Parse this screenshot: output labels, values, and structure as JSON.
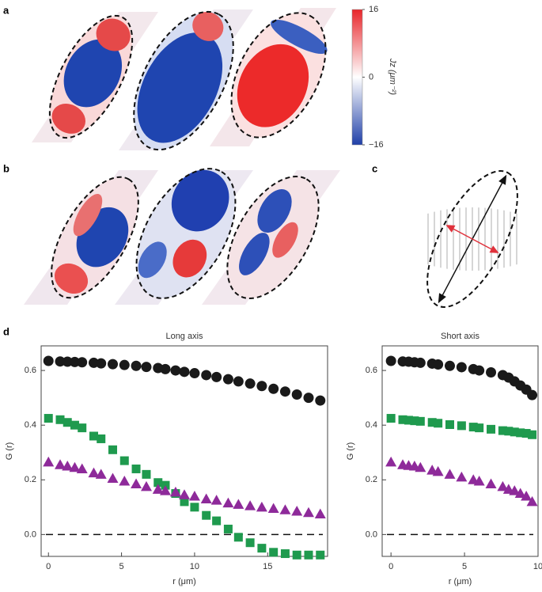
{
  "chart_data": [
    {
      "type": "heatmap",
      "panel": "a",
      "colorbar": {
        "lim": [
          -16,
          16
        ],
        "ticks": [
          16,
          0,
          {
            "value": -16,
            "label": "−16"
          }
        ],
        "label": "Jz (μm⁻²)"
      }
    },
    {
      "type": "heatmap",
      "panel": "b"
    },
    {
      "type": "diagram",
      "panel": "c"
    },
    {
      "type": "scatter",
      "panel": "d",
      "title": "Long axis",
      "title_color": "#222222",
      "xlabel": "r (μm)",
      "ylabel": "G (r)",
      "xlim": [
        -0.5,
        19.1
      ],
      "ylim": [
        -0.08,
        0.69
      ],
      "xticks": [
        0,
        5,
        10,
        15
      ],
      "yticks": [
        {
          "value": 0,
          "label": "0.0"
        },
        0.2,
        0.4,
        0.6
      ],
      "hline": 0,
      "x": [
        0,
        0.8,
        1.3,
        1.8,
        2.3,
        3.1,
        3.6,
        4.4,
        5.2,
        6.0,
        6.7,
        7.5,
        8.0,
        8.7,
        9.3,
        10.0,
        10.8,
        11.5,
        12.3,
        13.0,
        13.8,
        14.6,
        15.4,
        16.2,
        17.0,
        17.8,
        18.6
      ],
      "series": [
        {
          "color": "#1a1a1a",
          "marker": "circle",
          "values": [
            0.635,
            0.633,
            0.632,
            0.631,
            0.63,
            0.628,
            0.626,
            0.623,
            0.62,
            0.617,
            0.613,
            0.609,
            0.605,
            0.6,
            0.595,
            0.59,
            0.583,
            0.576,
            0.568,
            0.56,
            0.552,
            0.543,
            0.533,
            0.523,
            0.512,
            0.5,
            0.49
          ]
        },
        {
          "color": "#1f9a4e",
          "marker": "square",
          "values": [
            0.425,
            0.42,
            0.41,
            0.4,
            0.39,
            0.36,
            0.35,
            0.31,
            0.27,
            0.24,
            0.22,
            0.19,
            0.18,
            0.15,
            0.12,
            0.1,
            0.07,
            0.05,
            0.02,
            -0.01,
            -0.03,
            -0.05,
            -0.065,
            -0.07,
            -0.075,
            -0.075,
            -0.075
          ]
        },
        {
          "color": "#8e2a9a",
          "marker": "triangle",
          "values": [
            0.265,
            0.255,
            0.25,
            0.245,
            0.24,
            0.225,
            0.22,
            0.205,
            0.195,
            0.185,
            0.175,
            0.165,
            0.16,
            0.155,
            0.145,
            0.14,
            0.13,
            0.125,
            0.115,
            0.11,
            0.105,
            0.1,
            0.095,
            0.09,
            0.085,
            0.08,
            0.075
          ]
        }
      ]
    },
    {
      "type": "scatter",
      "title": "Short axis",
      "title_color": "#e0313b",
      "xlabel": "r (μm)",
      "ylabel": "G (r)",
      "xlim": [
        -0.6,
        10.0
      ],
      "ylim": [
        -0.08,
        0.69
      ],
      "xticks": [
        0,
        5,
        10
      ],
      "yticks": [
        {
          "value": 0,
          "label": "0.0"
        },
        0.2,
        0.4,
        0.6
      ],
      "hline": 0,
      "x": [
        0,
        0.8,
        1.2,
        1.6,
        2.0,
        2.8,
        3.2,
        4.0,
        4.8,
        5.6,
        6.0,
        6.8,
        7.6,
        8.0,
        8.4,
        8.8,
        9.2,
        9.6
      ],
      "series": [
        {
          "color": "#1a1a1a",
          "marker": "circle",
          "values": [
            0.635,
            0.633,
            0.632,
            0.63,
            0.628,
            0.625,
            0.622,
            0.617,
            0.612,
            0.605,
            0.6,
            0.593,
            0.583,
            0.574,
            0.56,
            0.545,
            0.53,
            0.51
          ]
        },
        {
          "color": "#1f9a4e",
          "marker": "square",
          "values": [
            0.425,
            0.42,
            0.418,
            0.416,
            0.414,
            0.41,
            0.407,
            0.402,
            0.398,
            0.393,
            0.39,
            0.385,
            0.38,
            0.378,
            0.375,
            0.372,
            0.37,
            0.365
          ]
        },
        {
          "color": "#8e2a9a",
          "marker": "triangle",
          "values": [
            0.265,
            0.255,
            0.252,
            0.25,
            0.245,
            0.235,
            0.23,
            0.22,
            0.21,
            0.2,
            0.195,
            0.185,
            0.175,
            0.165,
            0.16,
            0.15,
            0.14,
            0.12
          ]
        }
      ]
    }
  ]
}
